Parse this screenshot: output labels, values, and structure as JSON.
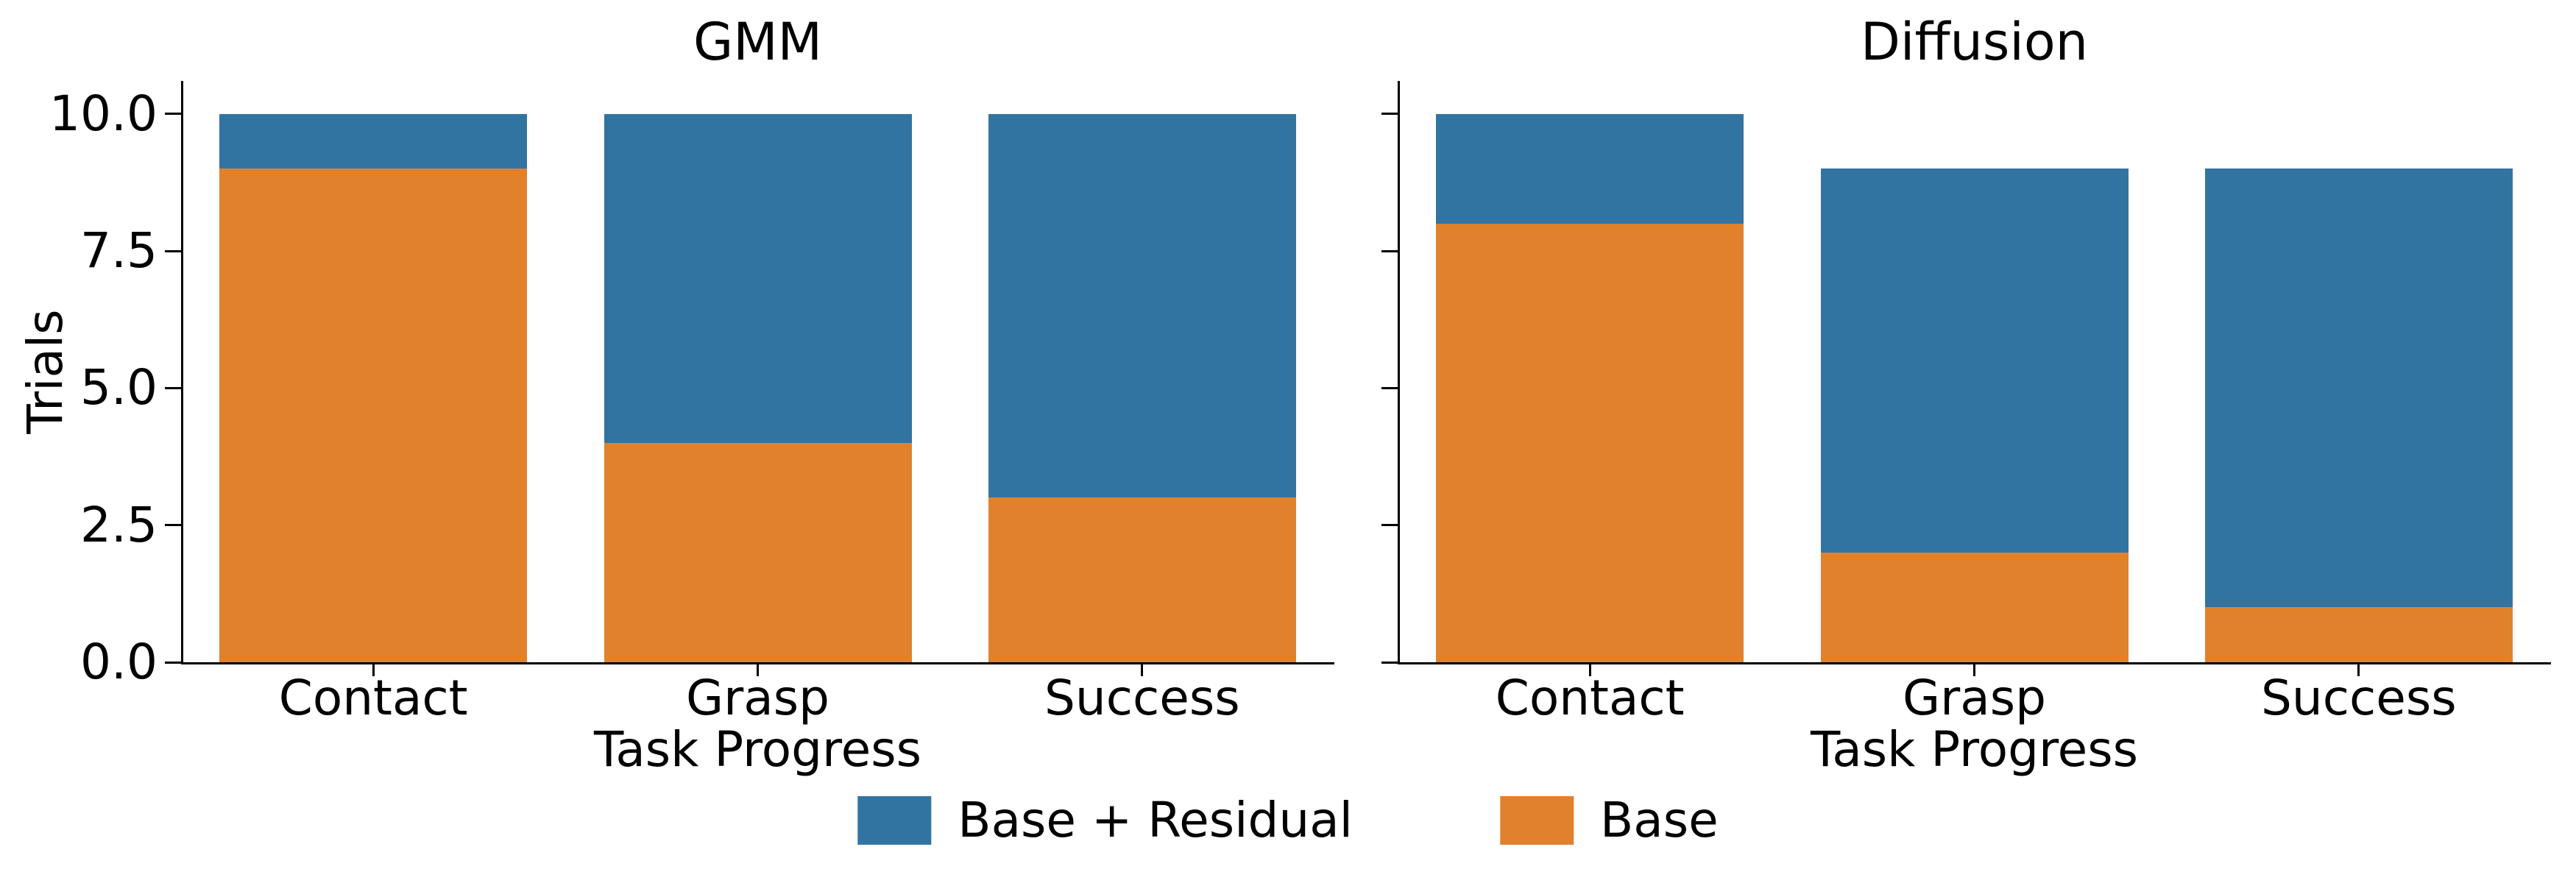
{
  "figure": {
    "ylabel": "Trials",
    "legend": [
      {
        "label": "Base + Residual",
        "color": "#3274A1"
      },
      {
        "label": "Base",
        "color": "#E1812C"
      }
    ]
  },
  "chart_data": [
    {
      "type": "bar",
      "title": "GMM",
      "xlabel": "Task Progress",
      "ylabel": "Trials",
      "categories": [
        "Contact",
        "Grasp",
        "Success"
      ],
      "series": [
        {
          "name": "Base + Residual",
          "color": "#3274A1",
          "values": [
            10,
            10,
            10
          ]
        },
        {
          "name": "Base",
          "color": "#E1812C",
          "values": [
            9,
            4,
            3
          ]
        }
      ],
      "bar_style": "overlaid-front-to-back",
      "ylim": [
        0,
        10.6
      ],
      "yticks": [
        0,
        2.5,
        5,
        7.5,
        10
      ],
      "ytick_labels": [
        "0.0",
        "2.5",
        "5.0",
        "7.5",
        "10.0"
      ],
      "show_ytick_labels": true,
      "grid": false,
      "legend_position": "bottom-center"
    },
    {
      "type": "bar",
      "title": "Diffusion",
      "xlabel": "Task Progress",
      "categories": [
        "Contact",
        "Grasp",
        "Success"
      ],
      "series": [
        {
          "name": "Base + Residual",
          "color": "#3274A1",
          "values": [
            10,
            9,
            9
          ]
        },
        {
          "name": "Base",
          "color": "#E1812C",
          "values": [
            8,
            2,
            1
          ]
        }
      ],
      "bar_style": "overlaid-front-to-back",
      "ylim": [
        0,
        10.6
      ],
      "yticks": [
        0,
        2.5,
        5,
        7.5,
        10
      ],
      "ytick_labels": [
        "0.0",
        "2.5",
        "5.0",
        "7.5",
        "10.0"
      ],
      "show_ytick_labels": false,
      "grid": false
    }
  ]
}
